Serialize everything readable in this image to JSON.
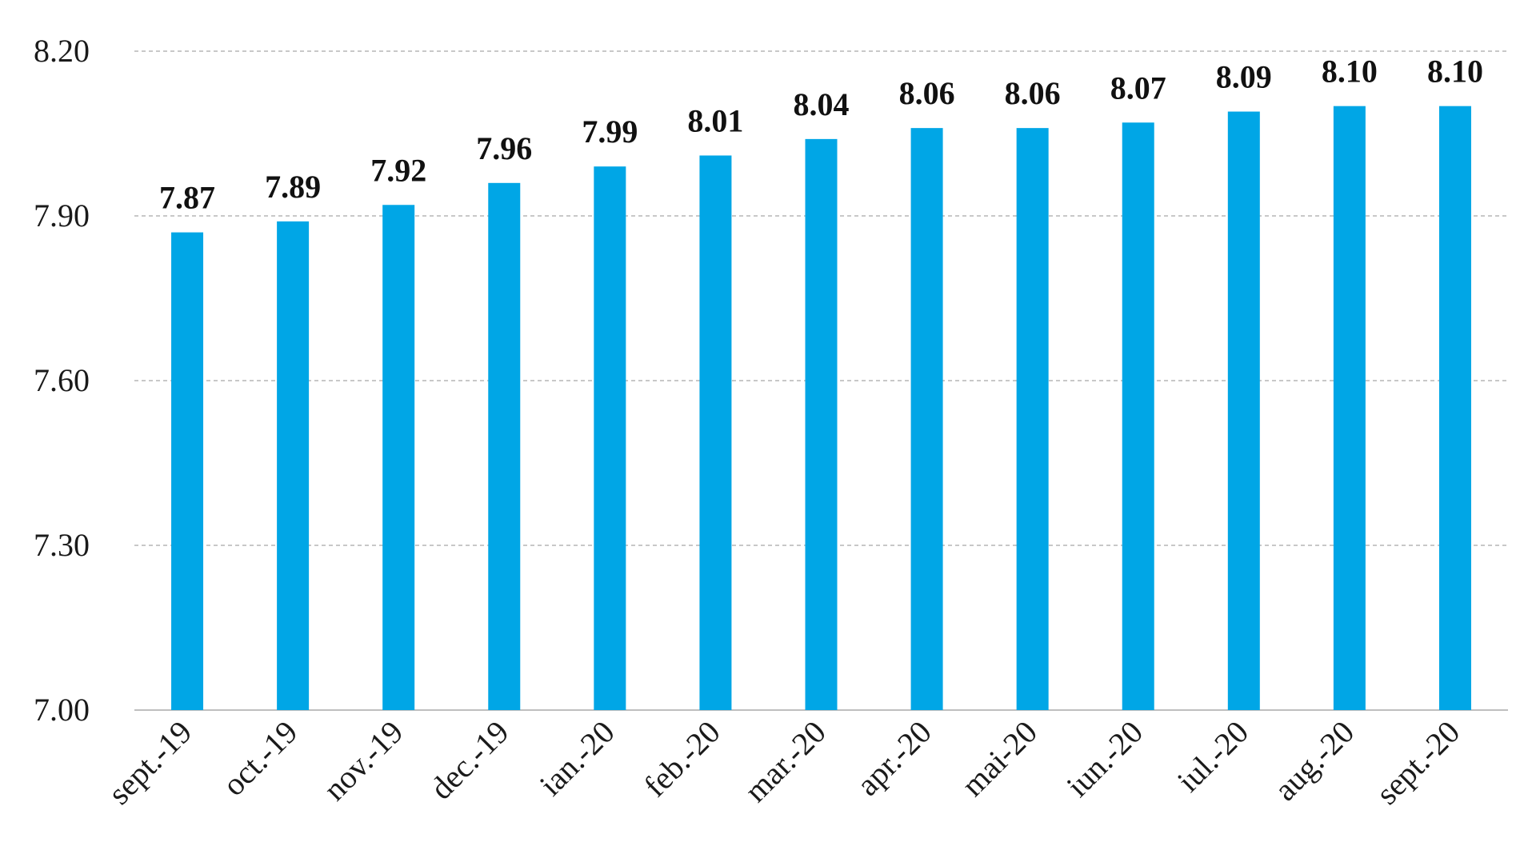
{
  "chart_data": {
    "type": "bar",
    "title": "",
    "xlabel": "",
    "ylabel": "",
    "categories": [
      "sept.-19",
      "oct.-19",
      "nov.-19",
      "dec.-19",
      "ian.-20",
      "feb.-20",
      "mar.-20",
      "apr.-20",
      "mai-20",
      "iun.-20",
      "iul.-20",
      "aug.-20",
      "sept.-20"
    ],
    "values": [
      7.87,
      7.89,
      7.92,
      7.96,
      7.99,
      8.01,
      8.04,
      8.06,
      8.06,
      8.07,
      8.09,
      8.1,
      8.1
    ],
    "value_labels": [
      "7.87",
      "7.89",
      "7.92",
      "7.96",
      "7.99",
      "8.01",
      "8.04",
      "8.06",
      "8.06",
      "8.07",
      "8.09",
      "8.10",
      "8.10"
    ],
    "ylim": [
      7.0,
      8.2
    ],
    "yticks": [
      7.0,
      7.3,
      7.6,
      7.9,
      8.2
    ],
    "ytick_labels": [
      "7.00",
      "7.30",
      "7.60",
      "7.90",
      "8.20"
    ],
    "grid": true,
    "bar_color": "#00a6e6"
  }
}
